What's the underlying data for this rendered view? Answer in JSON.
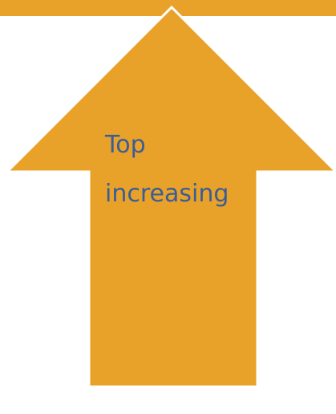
{
  "arrow": {
    "label_lines": [
      "Top",
      "increasing"
    ],
    "fill_color": "#e8a22a",
    "outline_color": "#ffffff",
    "text_color": "#3b5d96"
  }
}
